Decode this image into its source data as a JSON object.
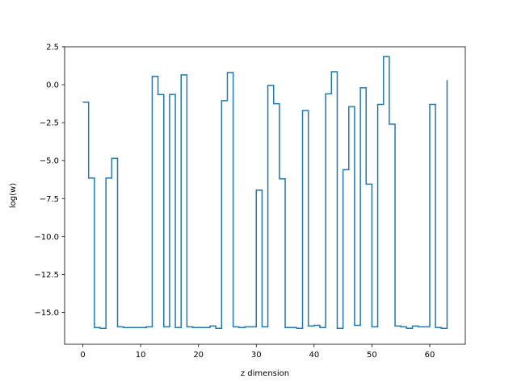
{
  "chart_data": {
    "type": "line",
    "drawstyle": "steps-post",
    "title": "",
    "xlabel": "z dimension",
    "ylabel": "log(w)",
    "xlim": [
      -3.15,
      66.15
    ],
    "ylim": [
      -17.1,
      2.5
    ],
    "xticks": [
      0,
      10,
      20,
      30,
      40,
      50,
      60
    ],
    "xtick_labels": [
      "0",
      "10",
      "20",
      "30",
      "40",
      "50",
      "60"
    ],
    "yticks": [
      2.5,
      0.0,
      -2.5,
      -5.0,
      -7.5,
      -10.0,
      -12.5,
      -15.0
    ],
    "ytick_labels": [
      "2.5",
      "0.0",
      "−2.5",
      "−5.0",
      "−7.5",
      "−10.0",
      "−12.5",
      "−15.0"
    ],
    "grid": false,
    "line_color": "#1f77b4",
    "series": [
      {
        "x": [
          0,
          1,
          2,
          3,
          4,
          5,
          6,
          7,
          8,
          9,
          10,
          11,
          12,
          13,
          14,
          15,
          16,
          17,
          18,
          19,
          20,
          21,
          22,
          23,
          24,
          25,
          26,
          27,
          28,
          29,
          30,
          31,
          32,
          33,
          34,
          35,
          36,
          37,
          38,
          39,
          40,
          41,
          42,
          43,
          44,
          45,
          46,
          47,
          48,
          49,
          50,
          51,
          52,
          53,
          54,
          55,
          56,
          57,
          58,
          59,
          60,
          61,
          62,
          63
        ],
        "values": [
          -1.15,
          -6.15,
          -16.0,
          -16.05,
          -6.15,
          -4.85,
          -15.95,
          -16.0,
          -16.0,
          -16.0,
          -16.0,
          -15.95,
          0.55,
          -0.65,
          -15.95,
          -0.65,
          -16.0,
          0.65,
          -15.95,
          -16.0,
          -16.0,
          -16.0,
          -15.9,
          -16.05,
          -1.05,
          0.8,
          -15.95,
          -16.0,
          -15.95,
          -15.95,
          -6.95,
          -15.95,
          -0.05,
          -1.25,
          -6.2,
          -16.0,
          -16.0,
          -16.05,
          -1.7,
          -15.9,
          -15.85,
          -16.0,
          -0.6,
          0.85,
          -16.05,
          -5.6,
          -1.45,
          -15.85,
          -0.2,
          -6.55,
          -15.95,
          -1.3,
          1.85,
          -2.6,
          -15.9,
          -15.95,
          -16.05,
          -15.9,
          -15.95,
          -15.95,
          -1.3,
          -16.0,
          -16.05,
          0.3
        ]
      }
    ]
  }
}
